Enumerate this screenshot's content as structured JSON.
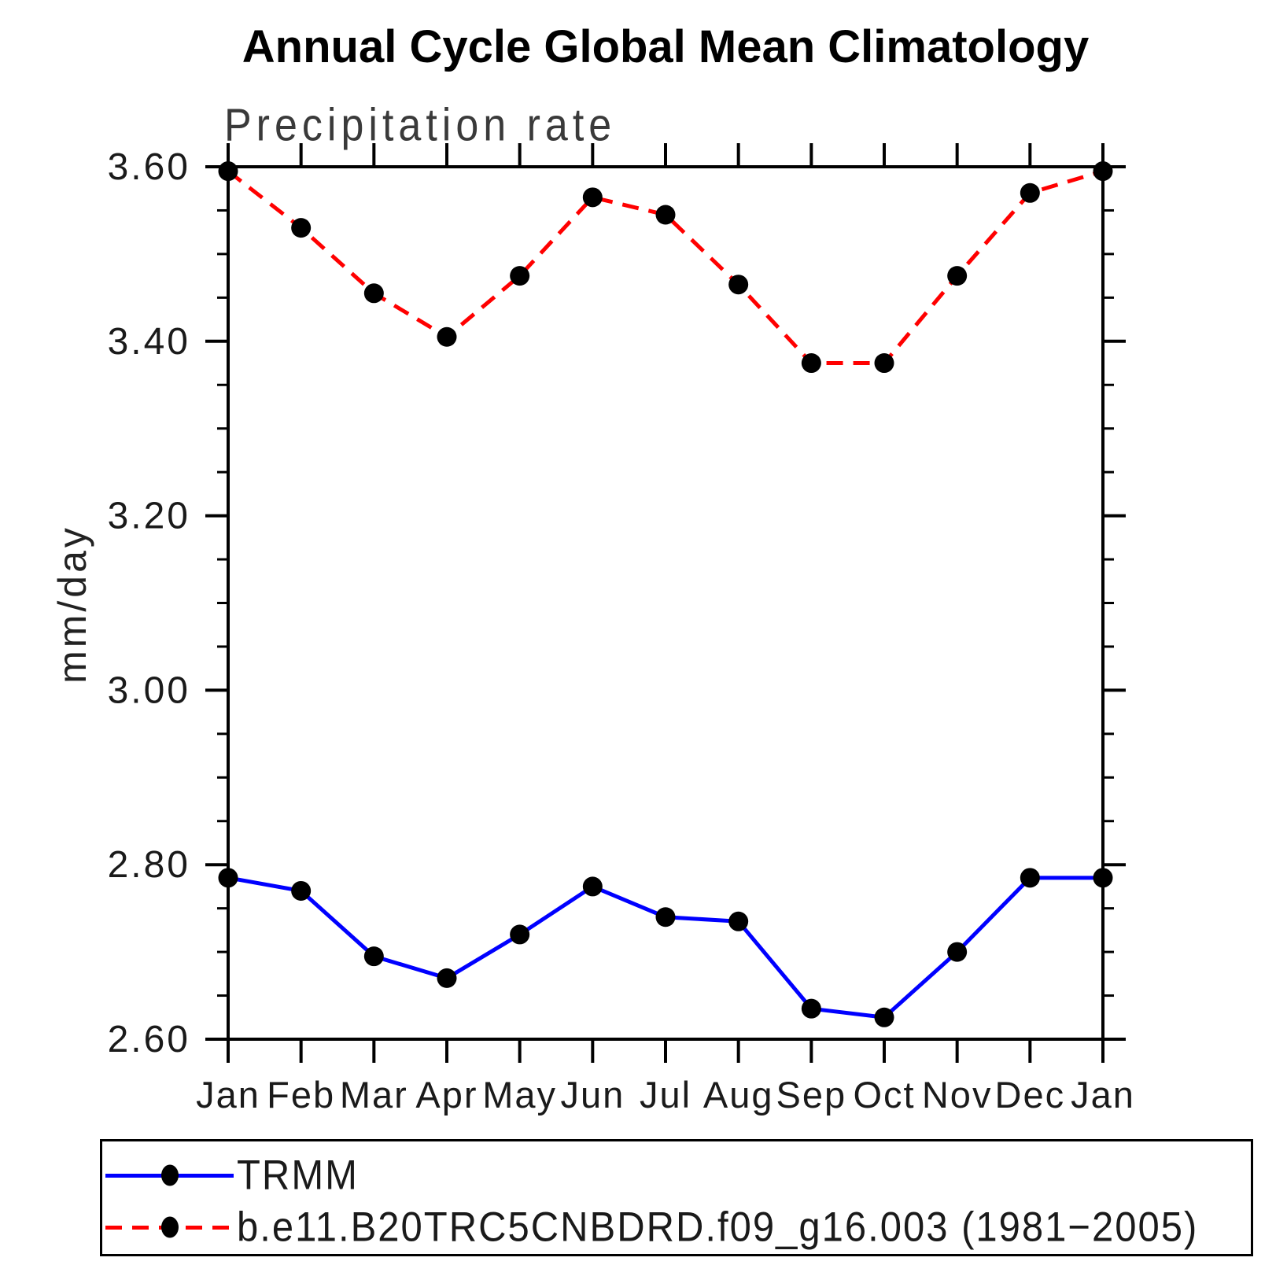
{
  "title": "Annual Cycle Global Mean Climatology",
  "subtitle": "Precipitation rate",
  "ylabel": "mm/day",
  "colors": {
    "trmm_line": "#0000ff",
    "model_line": "#ff0000",
    "marker": "#000000",
    "axis": "#000000"
  },
  "legend": {
    "items": [
      {
        "label": "TRMM"
      },
      {
        "label": "b.e11.B20TRC5CNBDRD.f09_g16.003 (1981−2005)"
      }
    ]
  },
  "chart_data": {
    "type": "line",
    "title": "Annual Cycle Global Mean Climatology",
    "subtitle": "Precipitation rate",
    "ylabel": "mm/day",
    "xlabel": "",
    "categories": [
      "Jan",
      "Feb",
      "Mar",
      "Apr",
      "May",
      "Jun",
      "Jul",
      "Aug",
      "Sep",
      "Oct",
      "Nov",
      "Dec",
      "Jan"
    ],
    "series": [
      {
        "name": "TRMM",
        "color": "#0000ff",
        "line_style": "solid",
        "marker": "circle",
        "marker_color": "#000000",
        "values": [
          2.785,
          2.77,
          2.695,
          2.67,
          2.72,
          2.775,
          2.74,
          2.735,
          2.635,
          2.625,
          2.7,
          2.785,
          2.785
        ]
      },
      {
        "name": "b.e11.B20TRC5CNBDRD.f09_g16.003 (1981−2005)",
        "color": "#ff0000",
        "line_style": "dashed",
        "marker": "circle",
        "marker_color": "#000000",
        "values": [
          3.595,
          3.53,
          3.455,
          3.405,
          3.475,
          3.565,
          3.545,
          3.465,
          3.375,
          3.375,
          3.475,
          3.57,
          3.595
        ]
      }
    ],
    "ylim": [
      2.6,
      3.6
    ],
    "yticks_major": [
      2.6,
      2.8,
      3.0,
      3.2,
      3.4,
      3.6
    ],
    "ytick_labels": [
      "2.60",
      "2.80",
      "3.00",
      "3.20",
      "3.40",
      "3.60"
    ],
    "ytick_minor_step": 0.05,
    "grid": false,
    "frame": true,
    "legend_position": "bottom"
  }
}
